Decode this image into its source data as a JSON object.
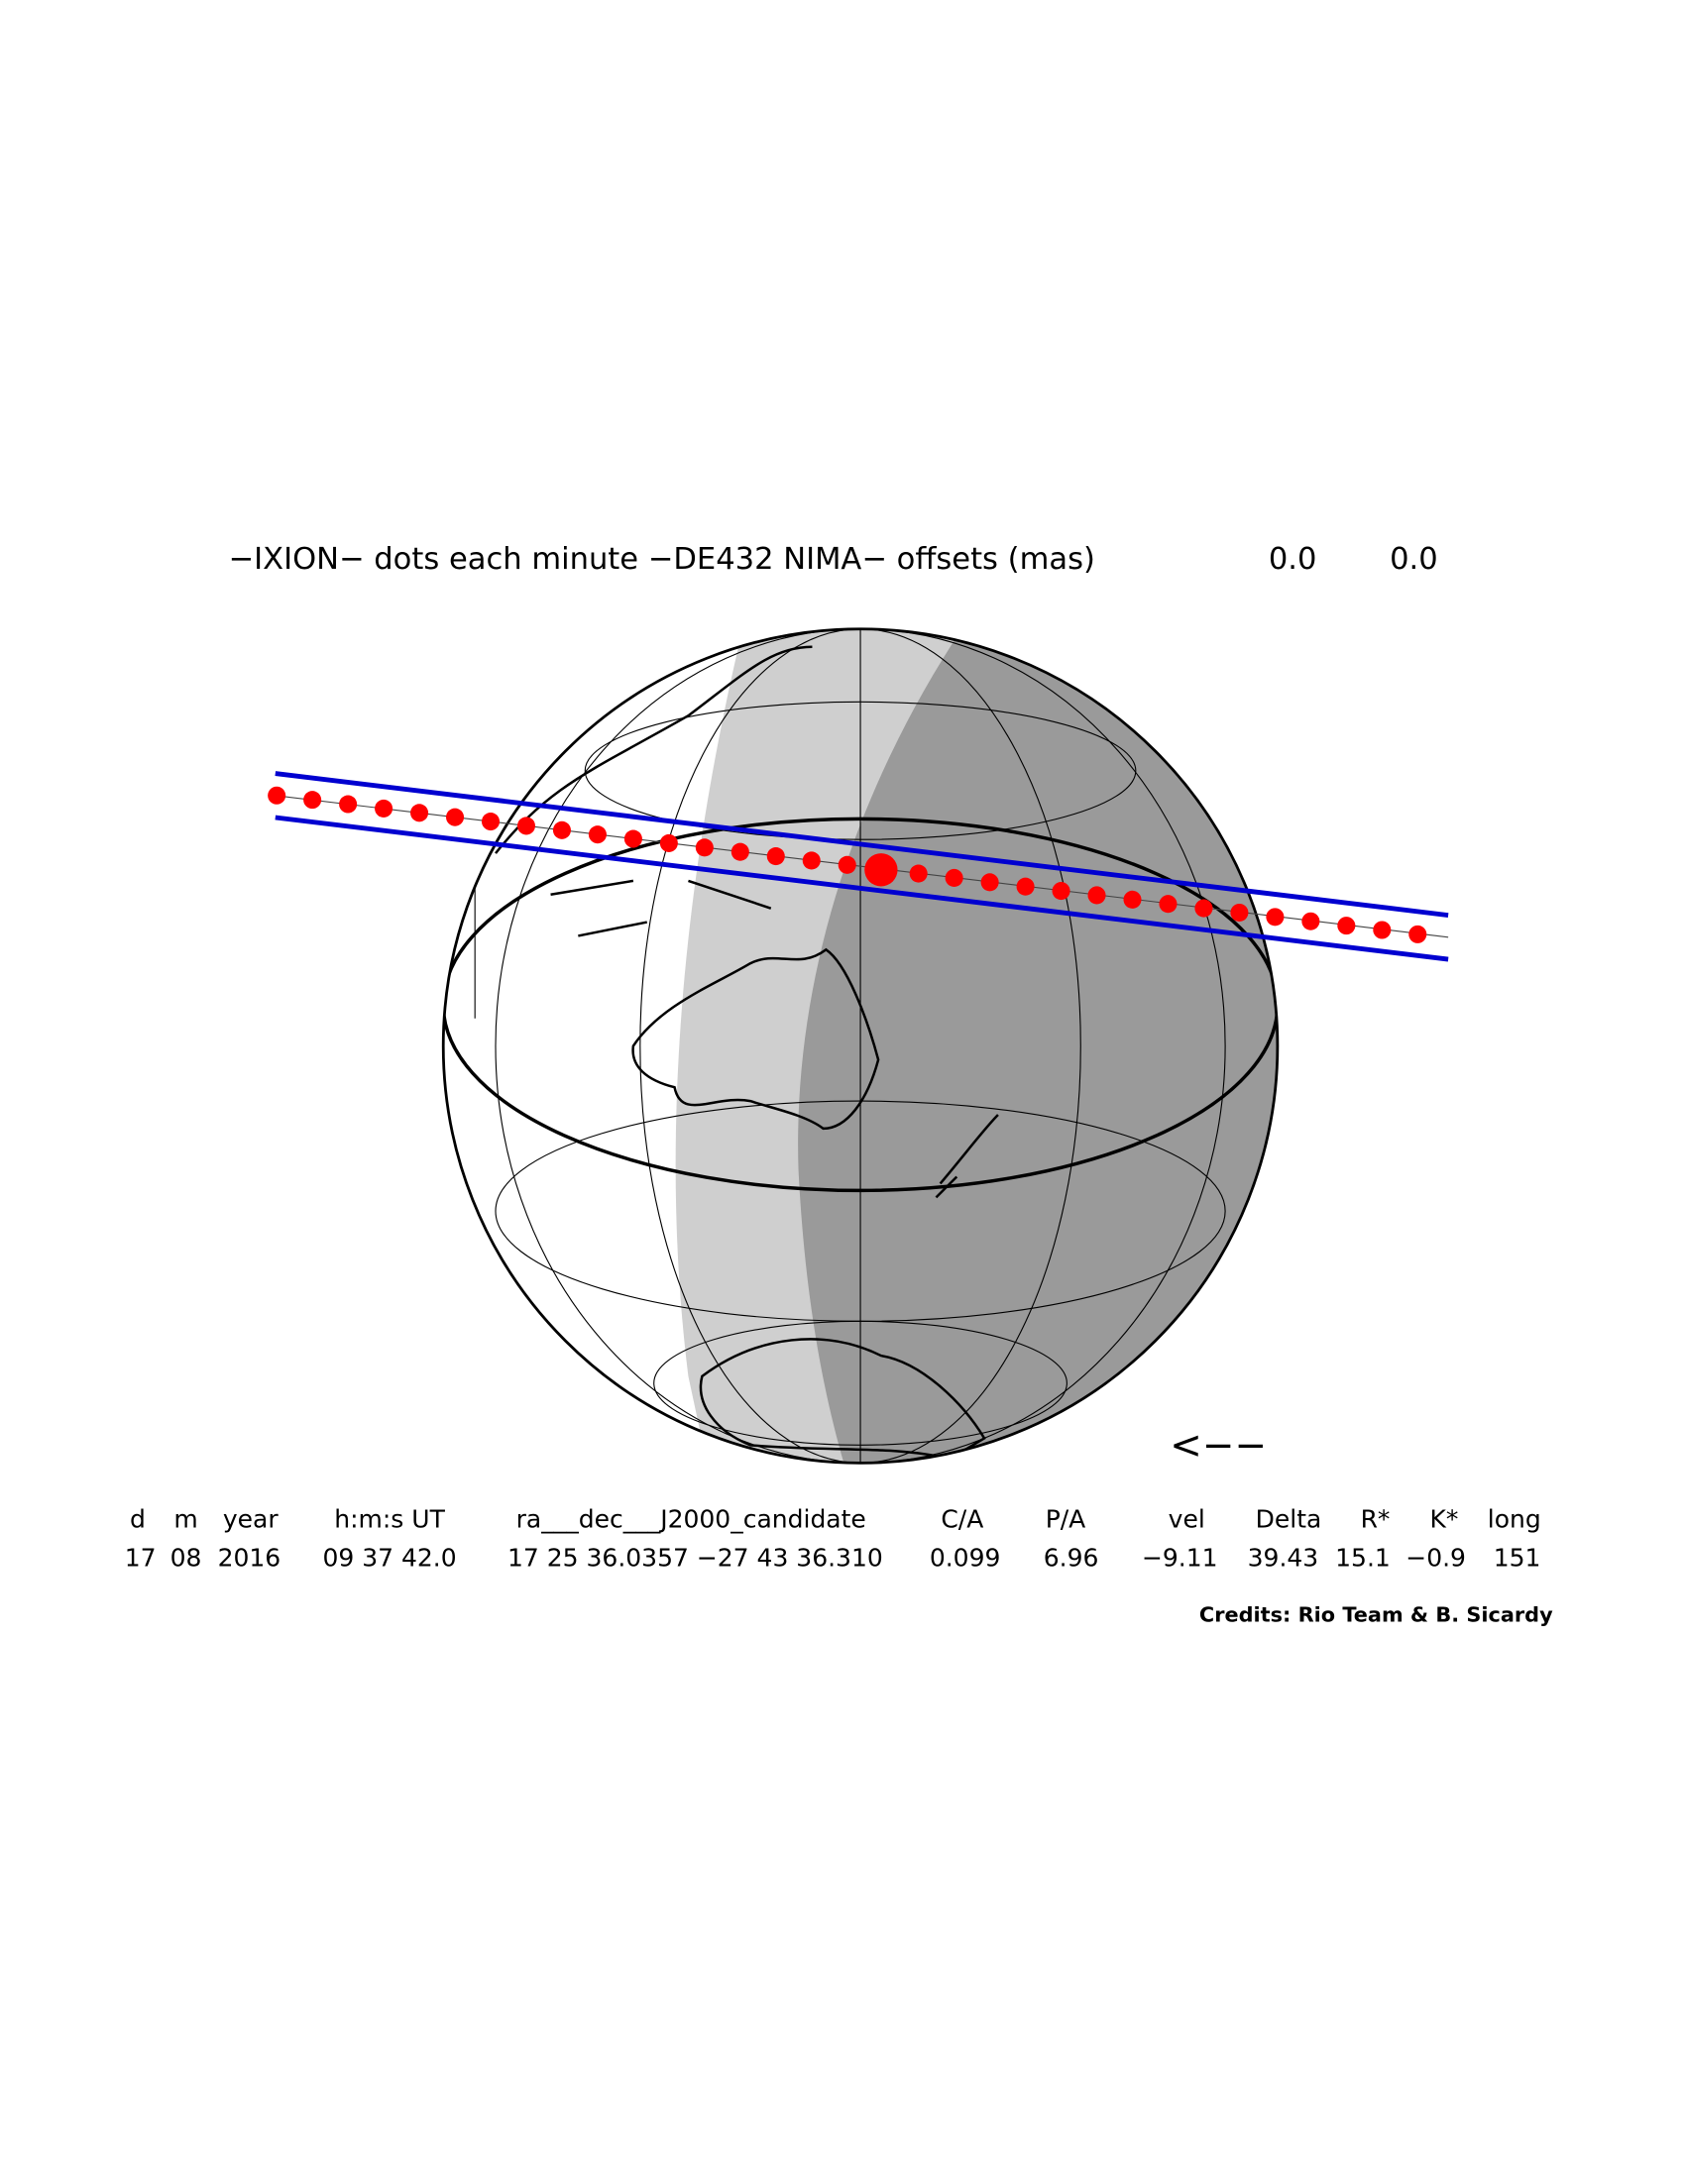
{
  "title": {
    "text": "−IXION− dots each minute −DE432 NIMA− offsets (mas)",
    "offset_ra": "0.0",
    "offset_dec": "0.0"
  },
  "direction_arrow": "<−−",
  "table": {
    "headers": [
      "d",
      "m",
      "year",
      "h:m:s UT",
      "ra___dec___J2000_candidate",
      "C/A",
      "P/A",
      "vel",
      "Delta",
      "R*",
      "K*",
      "long"
    ],
    "values": [
      "17",
      "08",
      "2016",
      "09 37 42.0",
      "17 25 36.0357 −27 43 36.310",
      "0.099",
      "6.96",
      "−9.11",
      "39.43",
      "15.1",
      "−0.9",
      "151"
    ]
  },
  "credits": "Credits: Rio Team & B. Sicardy"
}
